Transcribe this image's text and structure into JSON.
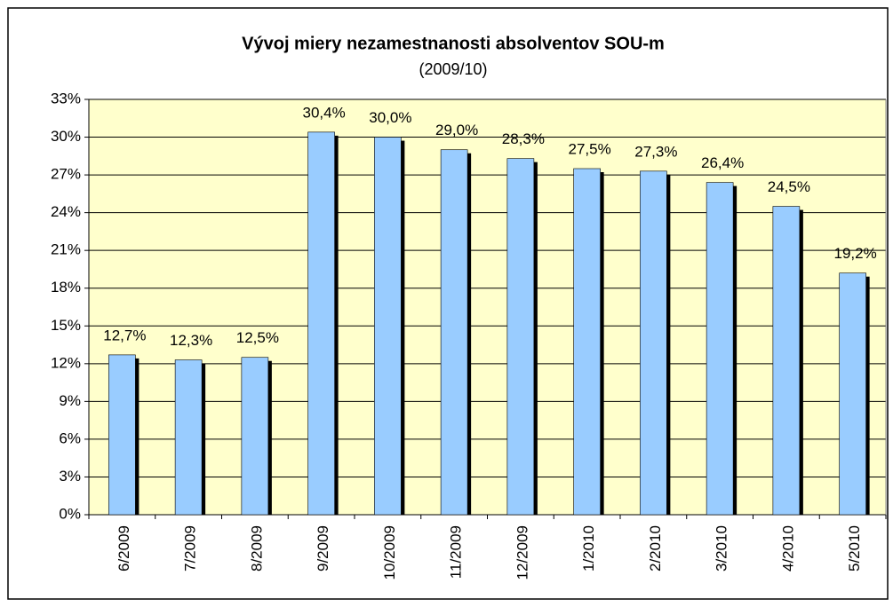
{
  "chart_data": {
    "type": "bar",
    "title": "Vývoj miery nezamestnanosti absolventov SOU-m",
    "subtitle": "(2009/10)",
    "categories": [
      "6/2009",
      "7/2009",
      "8/2009",
      "9/2009",
      "10/2009",
      "11/2009",
      "12/2009",
      "1/2010",
      "2/2010",
      "3/2010",
      "4/2010",
      "5/2010"
    ],
    "values": [
      12.7,
      12.3,
      12.5,
      30.4,
      30.0,
      29.0,
      28.3,
      27.5,
      27.3,
      26.4,
      24.5,
      19.2
    ],
    "value_labels": [
      "12,7%",
      "12,3%",
      "12,5%",
      "30,4%",
      "30,0%",
      "29,0%",
      "28,3%",
      "27,5%",
      "27,3%",
      "26,4%",
      "24,5%",
      "19,2%"
    ],
    "color": "#99ccff",
    "ylim": [
      0,
      33
    ],
    "yticks": [
      {
        "value": 0,
        "label": "0%"
      },
      {
        "value": 3,
        "label": "3%"
      },
      {
        "value": 6,
        "label": "6%"
      },
      {
        "value": 9,
        "label": "9%"
      },
      {
        "value": 12,
        "label": "12%"
      },
      {
        "value": 15,
        "label": "15%"
      },
      {
        "value": 18,
        "label": "18%"
      },
      {
        "value": 21,
        "label": "21%"
      },
      {
        "value": 24,
        "label": "24%"
      },
      {
        "value": 27,
        "label": "27%"
      },
      {
        "value": 30,
        "label": "30%"
      },
      {
        "value": 33,
        "label": "33%"
      }
    ],
    "grid": true
  }
}
